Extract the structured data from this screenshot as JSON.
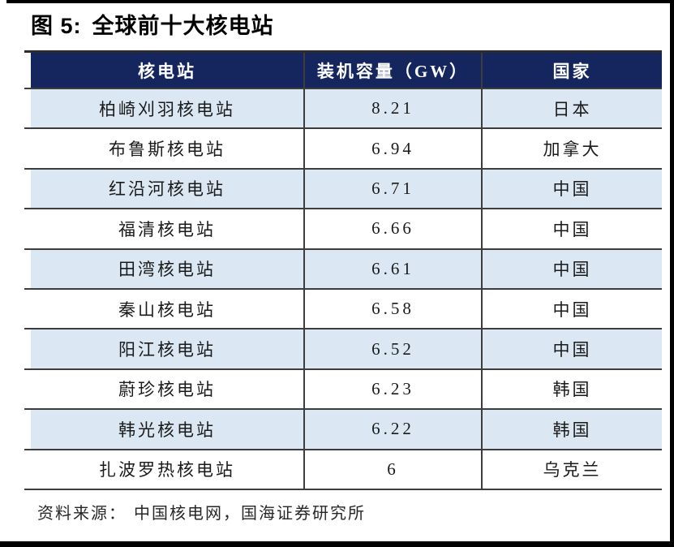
{
  "figure": {
    "title_prefix": "图 5:",
    "title": "全球前十大核电站",
    "source_label": "资料来源：",
    "source_text": "中国核电网，国海证券研究所"
  },
  "table": {
    "columns": [
      "核电站",
      "装机容量（GW）",
      "国家"
    ],
    "rows": [
      {
        "plant": "柏崎刈羽核电站",
        "capacity": "8.21",
        "country": "日本"
      },
      {
        "plant": "布鲁斯核电站",
        "capacity": "6.94",
        "country": "加拿大"
      },
      {
        "plant": "红沿河核电站",
        "capacity": "6.71",
        "country": "中国"
      },
      {
        "plant": "福清核电站",
        "capacity": "6.66",
        "country": "中国"
      },
      {
        "plant": "田湾核电站",
        "capacity": "6.61",
        "country": "中国"
      },
      {
        "plant": "秦山核电站",
        "capacity": "6.58",
        "country": "中国"
      },
      {
        "plant": "阳江核电站",
        "capacity": "6.52",
        "country": "中国"
      },
      {
        "plant": "蔚珍核电站",
        "capacity": "6.23",
        "country": "韩国"
      },
      {
        "plant": "韩光核电站",
        "capacity": "6.22",
        "country": "韩国"
      },
      {
        "plant": "扎波罗热核电站",
        "capacity": "6",
        "country": "乌克兰"
      }
    ]
  },
  "colors": {
    "header_bg": "#15265E",
    "header_text": "#FFFFFF",
    "row_bg": "#FFFFFF",
    "row_alt_bg": "#DBE8F4",
    "border": "#3D3D3D",
    "frame": "#000000"
  }
}
